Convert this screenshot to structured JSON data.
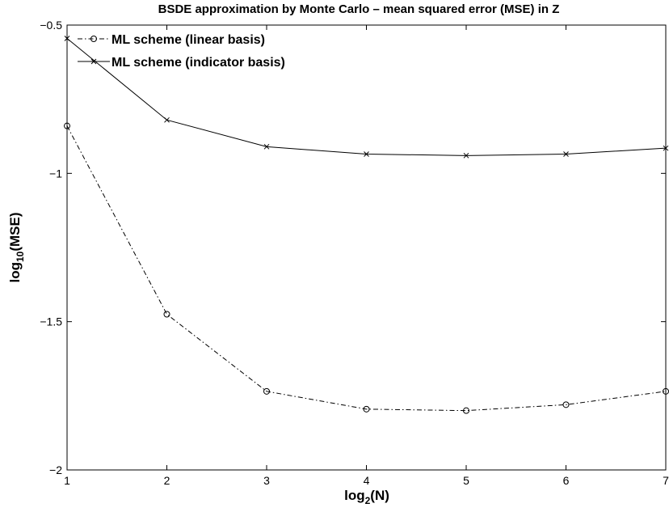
{
  "chart_data": {
    "type": "line",
    "title": "BSDE approximation by Monte Carlo – mean squared error (MSE) in Z",
    "xlabel": {
      "main": "log",
      "sub": "2",
      "rest": "(N)"
    },
    "ylabel": {
      "main": "log",
      "sub": "10",
      "rest": "(MSE)"
    },
    "xlim": [
      1,
      7
    ],
    "ylim": [
      -2,
      -0.5
    ],
    "xticks": [
      1,
      2,
      3,
      4,
      5,
      6,
      7
    ],
    "xtick_labels": [
      "1",
      "2",
      "3",
      "4",
      "5",
      "6",
      "7"
    ],
    "yticks": [
      -2,
      -1.5,
      -1,
      -0.5
    ],
    "ytick_labels": [
      "−2",
      "−1.5",
      "−1",
      "−0.5"
    ],
    "grid": false,
    "legend_position": "top-left",
    "x": [
      1,
      2,
      3,
      4,
      5,
      6,
      7
    ],
    "series": [
      {
        "name": "ML scheme (linear basis)",
        "values": [
          -0.84,
          -1.475,
          -1.735,
          -1.795,
          -1.8,
          -1.78,
          -1.735
        ],
        "marker": "circle",
        "line_style": "dash-dot",
        "color": "#000000"
      },
      {
        "name": "ML scheme (indicator basis)",
        "values": [
          -0.545,
          -0.82,
          -0.91,
          -0.935,
          -0.94,
          -0.935,
          -0.915
        ],
        "marker": "x",
        "line_style": "solid",
        "color": "#000000"
      }
    ]
  }
}
